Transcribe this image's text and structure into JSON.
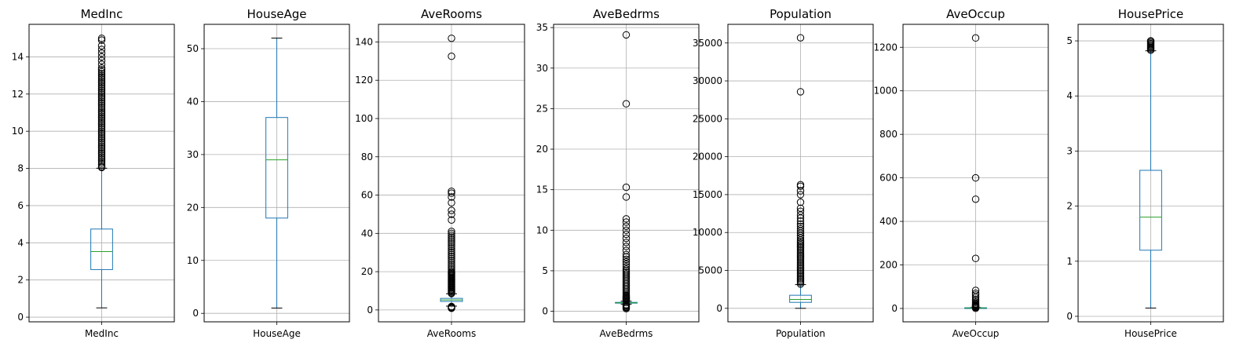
{
  "chart_data": [
    {
      "type": "box",
      "title": "MedInc",
      "categories": [
        "MedInc"
      ],
      "ylim": [
        -0.25,
        15.75
      ],
      "yticks": [
        0,
        2,
        4,
        6,
        8,
        10,
        12,
        14
      ],
      "ytick_labels": [
        "0",
        "2",
        "4",
        "6",
        "8",
        "10",
        "12",
        "14"
      ],
      "grid": true,
      "box": {
        "whislo": 0.5,
        "q1": 2.56,
        "med": 3.53,
        "q3": 4.74,
        "whishi": 8.01
      },
      "fliers": [
        8.05,
        8.1,
        8.2,
        8.3,
        8.4,
        8.5,
        8.6,
        8.7,
        8.8,
        8.9,
        9.0,
        9.1,
        9.2,
        9.3,
        9.4,
        9.5,
        9.6,
        9.7,
        9.8,
        9.9,
        10.0,
        10.1,
        10.2,
        10.3,
        10.4,
        10.5,
        10.6,
        10.7,
        10.8,
        10.9,
        11.0,
        11.1,
        11.2,
        11.3,
        11.4,
        11.5,
        11.6,
        11.7,
        11.8,
        11.9,
        12.0,
        12.1,
        12.2,
        12.3,
        12.4,
        12.5,
        12.6,
        12.7,
        12.8,
        12.9,
        13.0,
        13.1,
        13.2,
        13.3,
        13.4,
        13.6,
        13.8,
        14.0,
        14.2,
        14.4,
        14.6,
        14.9,
        15.0
      ]
    },
    {
      "type": "box",
      "title": "HouseAge",
      "categories": [
        "HouseAge"
      ],
      "ylim": [
        -1.6,
        54.6
      ],
      "yticks": [
        0,
        10,
        20,
        30,
        40,
        50
      ],
      "ytick_labels": [
        "0",
        "10",
        "20",
        "30",
        "40",
        "50"
      ],
      "grid": true,
      "box": {
        "whislo": 1,
        "q1": 18,
        "med": 29,
        "q3": 37,
        "whishi": 52
      },
      "fliers": []
    },
    {
      "type": "box",
      "title": "AveRooms",
      "categories": [
        "AveRooms"
      ],
      "ylim": [
        -6.2,
        149.2
      ],
      "yticks": [
        0,
        20,
        40,
        60,
        80,
        100,
        120,
        140
      ],
      "ytick_labels": [
        "0",
        "20",
        "40",
        "60",
        "80",
        "100",
        "120",
        "140"
      ],
      "grid": true,
      "box": {
        "whislo": 2.0,
        "q1": 4.44,
        "med": 5.23,
        "q3": 6.05,
        "whishi": 8.47
      },
      "fliers": [
        0.85,
        1.0,
        1.2,
        1.4,
        1.6,
        1.8,
        8.6,
        9,
        9.5,
        10,
        10.5,
        11,
        11.5,
        12,
        12.5,
        13,
        13.5,
        14,
        14.5,
        15,
        15.5,
        16,
        16.5,
        17,
        17.5,
        18,
        18.5,
        19,
        19.5,
        20,
        21,
        22,
        23,
        24,
        25,
        26,
        27,
        28,
        29,
        30,
        31,
        32,
        33,
        34,
        35,
        36,
        37,
        38,
        39,
        40,
        41,
        47,
        50,
        52,
        56,
        59,
        61,
        62,
        132.5,
        141.9
      ]
    },
    {
      "type": "box",
      "title": "AveBedrms",
      "categories": [
        "AveBedrms"
      ],
      "ylim": [
        -1.3,
        35.4
      ],
      "yticks": [
        0,
        5,
        10,
        15,
        20,
        25,
        30,
        35
      ],
      "ytick_labels": [
        "0",
        "5",
        "10",
        "15",
        "20",
        "25",
        "30",
        "35"
      ],
      "grid": true,
      "box": {
        "whislo": 0.87,
        "q1": 1.006,
        "med": 1.049,
        "q3": 1.1,
        "whishi": 1.24
      },
      "fliers": [
        0.33,
        0.45,
        0.55,
        0.65,
        0.75,
        0.82,
        1.3,
        1.4,
        1.5,
        1.6,
        1.7,
        1.8,
        1.9,
        2.0,
        2.2,
        2.4,
        2.6,
        2.8,
        3.0,
        3.2,
        3.4,
        3.6,
        3.8,
        4.0,
        4.2,
        4.4,
        4.6,
        4.8,
        5.0,
        5.2,
        5.5,
        5.8,
        6.1,
        6.4,
        6.7,
        7.0,
        7.5,
        8.0,
        8.5,
        9.0,
        9.5,
        10.0,
        10.5,
        11.0,
        11.4,
        14.1,
        15.3,
        25.6,
        34.1
      ]
    },
    {
      "type": "box",
      "title": "Population",
      "categories": [
        "Population"
      ],
      "ylim": [
        -1780,
        37460
      ],
      "yticks": [
        0,
        5000,
        10000,
        15000,
        20000,
        25000,
        30000,
        35000
      ],
      "ytick_labels": [
        "0",
        "5000",
        "10000",
        "15000",
        "20000",
        "25000",
        "30000",
        "35000"
      ],
      "grid": true,
      "box": {
        "whislo": 3,
        "q1": 787,
        "med": 1166,
        "q3": 1725,
        "whishi": 3132
      },
      "fliers": [
        3200,
        3400,
        3600,
        3800,
        4000,
        4200,
        4400,
        4600,
        4800,
        5000,
        5200,
        5400,
        5600,
        5800,
        6000,
        6200,
        6400,
        6600,
        6800,
        7000,
        7200,
        7400,
        7600,
        7800,
        8000,
        8200,
        8400,
        8600,
        8800,
        9000,
        9300,
        9600,
        9900,
        10200,
        10500,
        10800,
        11100,
        11500,
        11900,
        12300,
        12800,
        13200,
        14000,
        15000,
        15500,
        16100,
        16300,
        28566,
        35682
      ]
    },
    {
      "type": "box",
      "title": "AveOccup",
      "categories": [
        "AveOccup"
      ],
      "ylim": [
        -61.4,
        1305.5
      ],
      "yticks": [
        0,
        200,
        400,
        600,
        800,
        1000,
        1200
      ],
      "ytick_labels": [
        "0",
        "200",
        "400",
        "600",
        "800",
        "1000",
        "1200"
      ],
      "grid": true,
      "box": {
        "whislo": 1.16,
        "q1": 2.43,
        "med": 2.82,
        "q3": 3.28,
        "whishi": 4.56
      },
      "fliers": [
        0.7,
        4.8,
        5.5,
        6.5,
        8,
        10,
        12,
        15,
        18,
        22,
        28,
        35,
        42,
        52,
        62,
        70,
        83,
        230,
        502,
        600,
        1243
      ]
    },
    {
      "type": "box",
      "title": "HousePrice",
      "categories": [
        "HousePrice"
      ],
      "ylim": [
        -0.1,
        5.3
      ],
      "yticks": [
        0,
        1,
        2,
        3,
        4,
        5
      ],
      "ytick_labels": [
        "0",
        "1",
        "2",
        "3",
        "4",
        "5"
      ],
      "grid": true,
      "box": {
        "whislo": 0.15,
        "q1": 1.2,
        "med": 1.8,
        "q3": 2.65,
        "whishi": 4.82
      },
      "fliers": [
        4.83,
        4.85,
        4.87,
        4.89,
        4.91,
        4.93,
        4.95,
        4.97,
        4.99,
        5.0
      ]
    }
  ],
  "colors": {
    "box": "#1f77b4",
    "median": "#2ca02c",
    "grid": "#b0b0b0",
    "axis": "#000000"
  }
}
